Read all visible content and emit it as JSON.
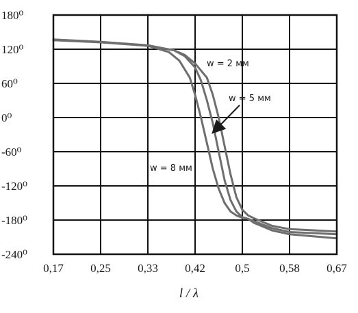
{
  "chart_data": {
    "type": "line",
    "xlabel": "l / λ",
    "ylabel": "",
    "x_ticks": [
      "0,17",
      "0,25",
      "0,33",
      "0,42",
      "0,5",
      "0,58",
      "0,67"
    ],
    "y_ticks": [
      "180⁰",
      "120⁰",
      "60⁰",
      "0⁰",
      "-60⁰",
      "-120⁰",
      "-180⁰",
      "-240⁰"
    ],
    "xlim": [
      0.17,
      0.67
    ],
    "ylim": [
      -240,
      180
    ],
    "grid": true,
    "line_color": "#6e6e6e",
    "series": [
      {
        "name": "w = 2 мм",
        "x": [
          0.17,
          0.25,
          0.33,
          0.38,
          0.4,
          0.42,
          0.44,
          0.45,
          0.46,
          0.47,
          0.48,
          0.49,
          0.5,
          0.51,
          0.52,
          0.55,
          0.58,
          0.67
        ],
        "y": [
          136,
          132,
          126,
          118,
          110,
          95,
          70,
          40,
          0,
          -50,
          -100,
          -140,
          -162,
          -172,
          -177,
          -190,
          -196,
          -200
        ]
      },
      {
        "name": "w = 5 мм",
        "x": [
          0.17,
          0.25,
          0.33,
          0.38,
          0.4,
          0.42,
          0.43,
          0.44,
          0.45,
          0.46,
          0.47,
          0.48,
          0.49,
          0.5,
          0.51,
          0.52,
          0.55,
          0.58,
          0.67
        ],
        "y": [
          136,
          133,
          127,
          118,
          108,
          88,
          65,
          30,
          -10,
          -60,
          -110,
          -145,
          -165,
          -175,
          -178,
          -182,
          -194,
          -201,
          -205
        ]
      },
      {
        "name": "w = 8 мм",
        "x": [
          0.17,
          0.25,
          0.33,
          0.37,
          0.39,
          0.41,
          0.42,
          0.43,
          0.44,
          0.45,
          0.46,
          0.47,
          0.48,
          0.49,
          0.5,
          0.51,
          0.52,
          0.55,
          0.58,
          0.67
        ],
        "y": [
          137,
          133,
          126,
          115,
          100,
          70,
          40,
          0,
          -45,
          -90,
          -125,
          -150,
          -165,
          -172,
          -176,
          -178,
          -185,
          -198,
          -205,
          -212
        ]
      }
    ],
    "annotations": [
      "w = 2 мм",
      "w = 5 мм",
      "w = 8 мм"
    ]
  }
}
